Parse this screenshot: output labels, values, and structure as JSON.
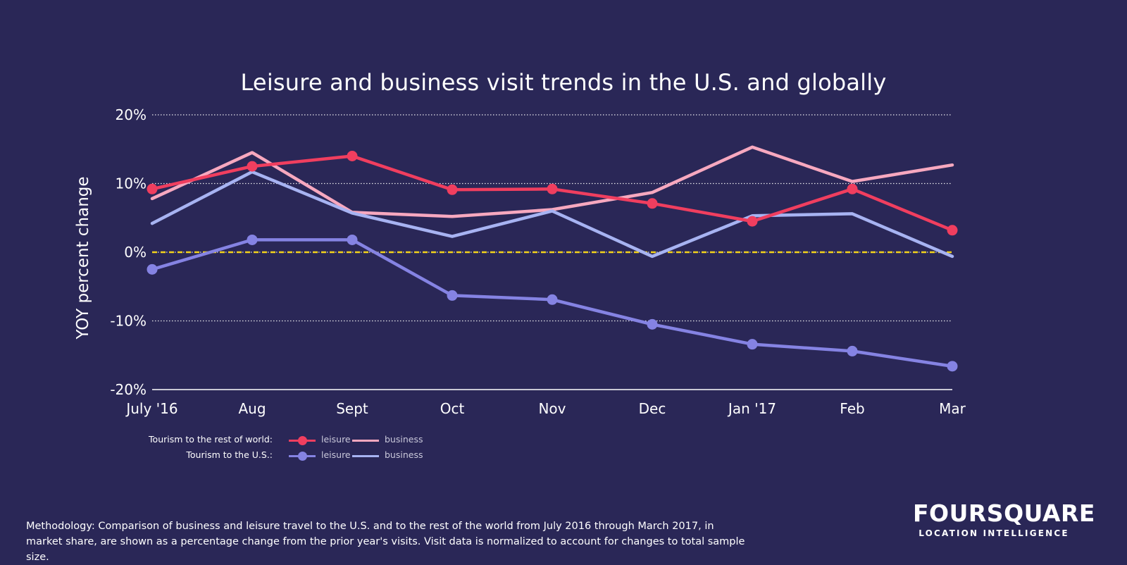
{
  "chart_data": {
    "type": "line",
    "title": "Leisure and business visit trends in the U.S. and globally",
    "ylabel": "YOY percent change",
    "xlabel": "",
    "categories": [
      "July '16",
      "Aug",
      "Sept",
      "Oct",
      "Nov",
      "Dec",
      "Jan '17",
      "Feb",
      "Mar"
    ],
    "ylim": [
      -20,
      20
    ],
    "yticks": [
      20,
      10,
      0,
      -10,
      -20
    ],
    "ytick_labels": [
      "20%",
      "10%",
      "0%",
      "-10%",
      "-20%"
    ],
    "grid": true,
    "zero_line_color": "#f2d21b",
    "series": [
      {
        "group": "Tourism to the rest of world:",
        "name": "business",
        "color": "#f7a8bf",
        "markers": false,
        "values": [
          7.8,
          14.5,
          5.8,
          5.2,
          6.2,
          8.7,
          15.3,
          10.3,
          12.7
        ]
      },
      {
        "group": "Tourism to the U.S.:",
        "name": "business",
        "color": "#a7b3f2",
        "markers": false,
        "values": [
          4.2,
          11.7,
          5.7,
          2.3,
          6.0,
          -0.6,
          5.3,
          5.6,
          -0.6
        ]
      },
      {
        "group": "Tourism to the rest of world:",
        "name": "leisure",
        "color": "#f03e5f",
        "markers": true,
        "values": [
          9.2,
          12.5,
          14.0,
          9.1,
          9.2,
          7.1,
          4.5,
          9.2,
          3.2
        ]
      },
      {
        "group": "Tourism to the U.S.:",
        "name": "leisure",
        "color": "#8583e3",
        "markers": true,
        "values": [
          -2.5,
          1.8,
          1.8,
          -6.3,
          -6.9,
          -10.5,
          -13.4,
          -14.4,
          -16.6
        ]
      }
    ],
    "legend": [
      {
        "label": "Tourism to the rest of world:",
        "entries": [
          {
            "name": "leisure",
            "color": "#f03e5f",
            "marker": true
          },
          {
            "name": "business",
            "color": "#f7a8bf",
            "marker": false
          }
        ]
      },
      {
        "label": "Tourism to the U.S.:",
        "entries": [
          {
            "name": "leisure",
            "color": "#8583e3",
            "marker": true
          },
          {
            "name": "business",
            "color": "#a7b3f2",
            "marker": false
          }
        ]
      }
    ]
  },
  "footer": {
    "methodology": "Methodology: Comparison of business and leisure travel to the U.S. and to the rest of the world from July 2016 through March 2017, in market share, are shown as a percentage change from the prior year's visits. Visit data is normalized to account for changes to total sample size."
  },
  "brand": {
    "name": "FOURSQUARE",
    "tagline": "LOCATION INTELLIGENCE"
  },
  "colors": {
    "background": "#2a2757",
    "text": "#ffffff"
  }
}
